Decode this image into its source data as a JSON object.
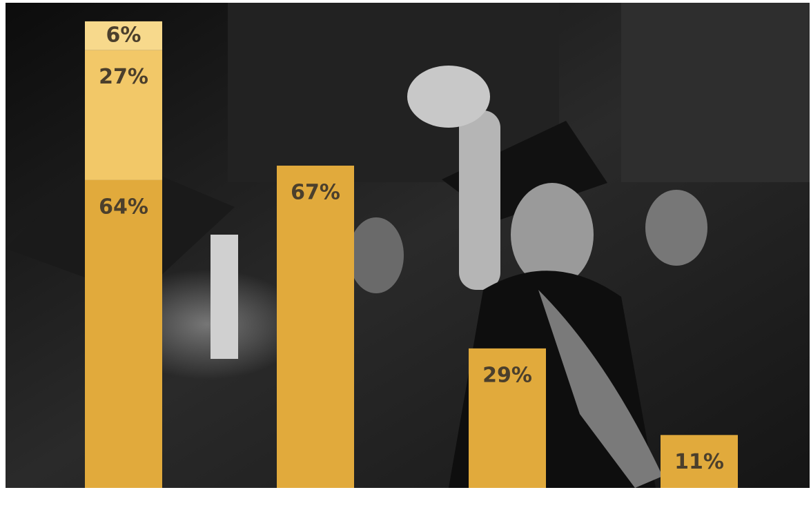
{
  "chart_data": {
    "type": "stacked_bar",
    "categories": [
      null,
      null,
      null,
      null
    ],
    "series": [
      {
        "color": "#e1aa3c",
        "values": [
          64,
          67,
          29,
          11
        ],
        "value_labels": [
          "64%",
          "67%",
          "29%",
          "11%"
        ]
      },
      {
        "color": "#f2c868",
        "values": [
          27,
          null,
          null,
          null
        ],
        "value_labels": [
          "27%",
          null,
          null,
          null
        ]
      },
      {
        "color": "#f7d98c",
        "values": [
          6,
          null,
          null,
          null
        ],
        "value_labels": [
          "6%",
          null,
          null,
          null
        ]
      }
    ],
    "ylim": [
      0,
      100
    ]
  }
}
